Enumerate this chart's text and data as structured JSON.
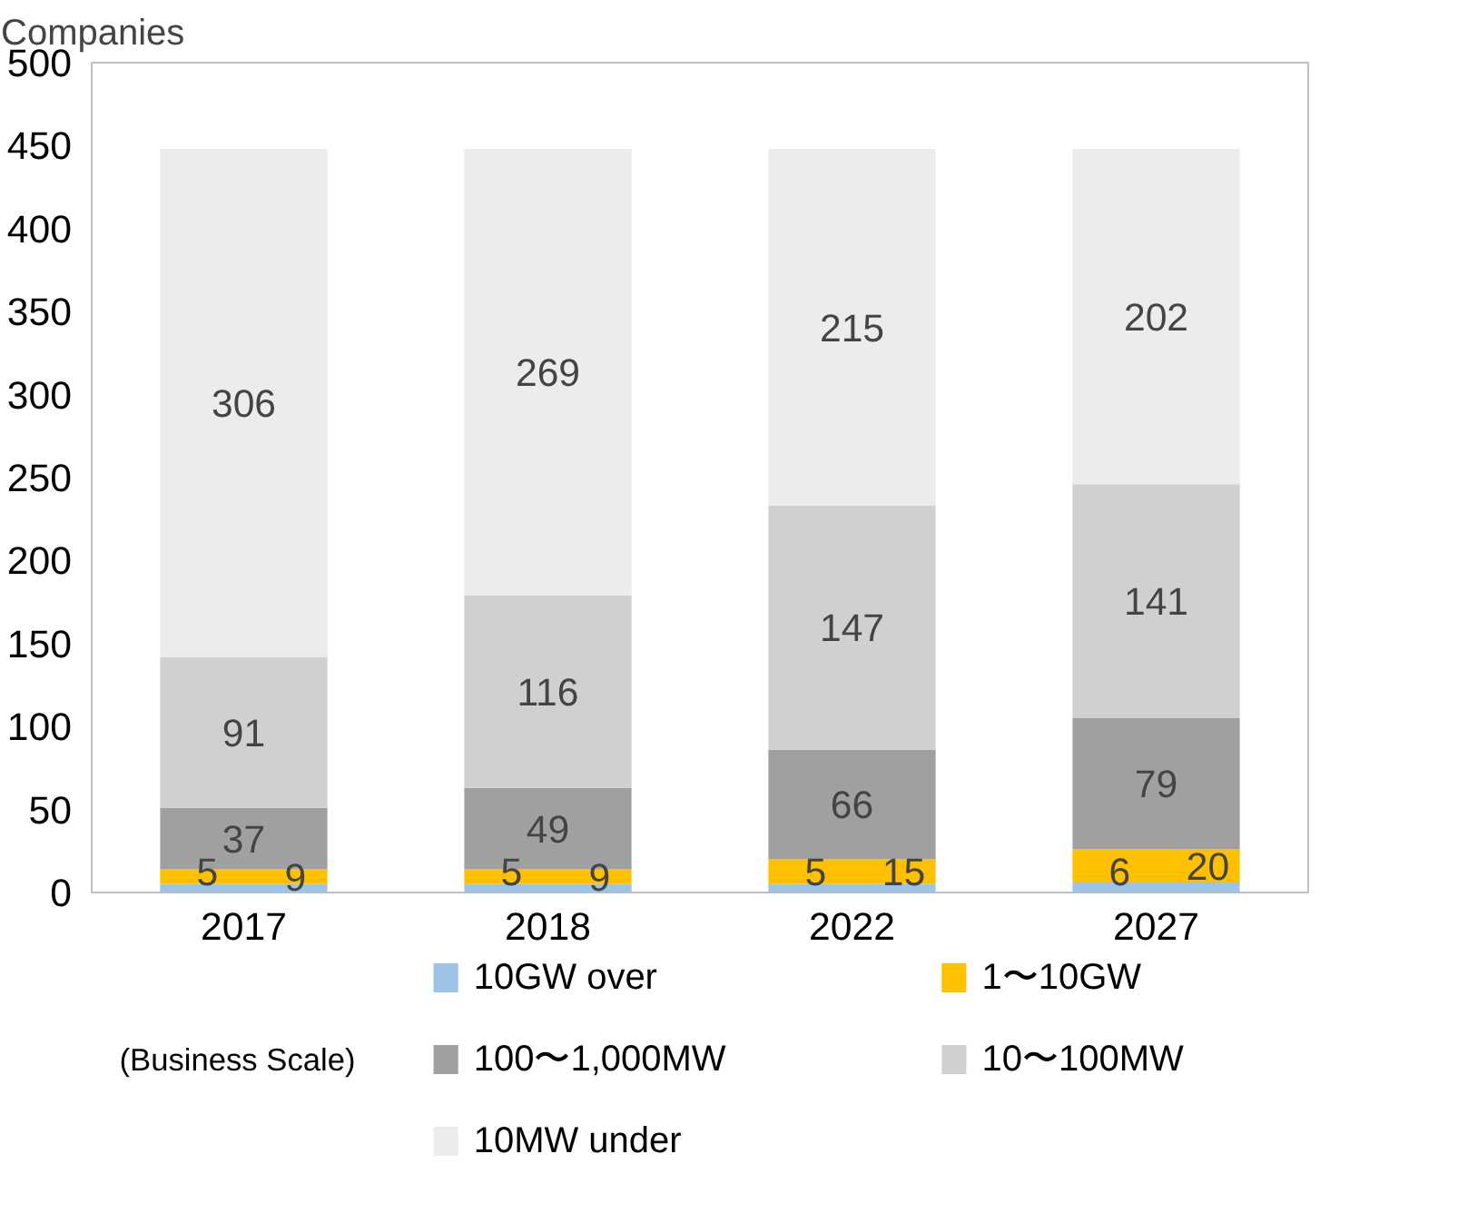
{
  "chart_data": {
    "type": "bar",
    "stacked": true,
    "ylabel": "Companies",
    "categories": [
      "2017",
      "2018",
      "2022",
      "2027"
    ],
    "series": [
      {
        "name": "10GW over",
        "color": "#9dc3e6",
        "values": [
          5,
          5,
          5,
          6
        ]
      },
      {
        "name": "1〜10GW",
        "color": "#ffc000",
        "values": [
          9,
          9,
          15,
          20
        ]
      },
      {
        "name": "100〜1,000MW",
        "color": "#a0a0a0",
        "values": [
          37,
          49,
          66,
          79
        ]
      },
      {
        "name": "10〜100MW",
        "color": "#d0d0d0",
        "values": [
          91,
          116,
          147,
          141
        ]
      },
      {
        "name": "10MW under",
        "color": "#ececec",
        "values": [
          306,
          269,
          215,
          202
        ]
      }
    ],
    "ylim": [
      0,
      500
    ],
    "yticks": [
      0,
      50,
      100,
      150,
      200,
      250,
      300,
      350,
      400,
      450,
      500
    ],
    "data_labels": true,
    "grid": false,
    "legend": "bottom",
    "annotations": [
      "(Business Scale)"
    ]
  }
}
